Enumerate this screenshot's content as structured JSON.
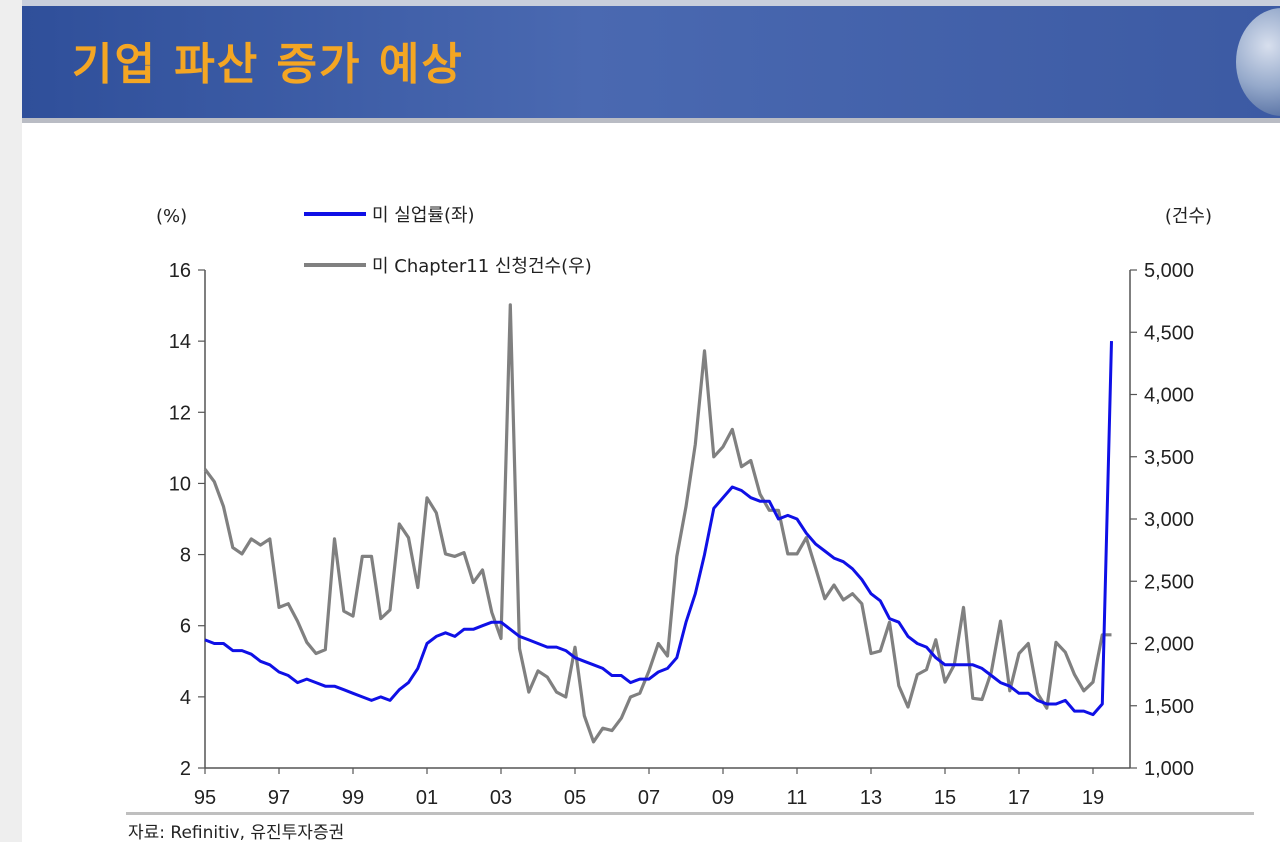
{
  "header": {
    "title": "기업 파산 증가 예상"
  },
  "source_note": "자료: Refinitiv, 유진투자증권",
  "chart_data": {
    "type": "line",
    "left_unit": "(%)",
    "right_unit": "(건수)",
    "x_labels": [
      "95",
      "97",
      "99",
      "01",
      "03",
      "05",
      "07",
      "09",
      "11",
      "13",
      "15",
      "17",
      "19"
    ],
    "x_range": [
      1995.0,
      2020.0
    ],
    "ylim_left": [
      2,
      16
    ],
    "yticks_left": [
      2,
      4,
      6,
      8,
      10,
      12,
      14,
      16
    ],
    "ylim_right": [
      1000,
      5000
    ],
    "yticks_right": [
      "1,000",
      "1,500",
      "2,000",
      "2,500",
      "3,000",
      "3,500",
      "4,000",
      "4,500",
      "5,000"
    ],
    "yticks_right_values": [
      1000,
      1500,
      2000,
      2500,
      3000,
      3500,
      4000,
      4500,
      5000
    ],
    "grid": false,
    "legend_position": "top",
    "series": [
      {
        "name": "미 실업률(좌)",
        "axis": "left",
        "color": "#0f10e6",
        "x": [
          1995.0,
          1995.25,
          1995.5,
          1995.75,
          1996.0,
          1996.25,
          1996.5,
          1996.75,
          1997.0,
          1997.25,
          1997.5,
          1997.75,
          1998.0,
          1998.25,
          1998.5,
          1998.75,
          1999.0,
          1999.25,
          1999.5,
          1999.75,
          2000.0,
          2000.25,
          2000.5,
          2000.75,
          2001.0,
          2001.25,
          2001.5,
          2001.75,
          2002.0,
          2002.25,
          2002.5,
          2002.75,
          2003.0,
          2003.25,
          2003.5,
          2003.75,
          2004.0,
          2004.25,
          2004.5,
          2004.75,
          2005.0,
          2005.25,
          2005.5,
          2005.75,
          2006.0,
          2006.25,
          2006.5,
          2006.75,
          2007.0,
          2007.25,
          2007.5,
          2007.75,
          2008.0,
          2008.25,
          2008.5,
          2008.75,
          2009.0,
          2009.25,
          2009.5,
          2009.75,
          2010.0,
          2010.25,
          2010.5,
          2010.75,
          2011.0,
          2011.25,
          2011.5,
          2011.75,
          2012.0,
          2012.25,
          2012.5,
          2012.75,
          2013.0,
          2013.25,
          2013.5,
          2013.75,
          2014.0,
          2014.25,
          2014.5,
          2014.75,
          2015.0,
          2015.25,
          2015.5,
          2015.75,
          2016.0,
          2016.25,
          2016.5,
          2016.75,
          2017.0,
          2017.25,
          2017.5,
          2017.75,
          2018.0,
          2018.25,
          2018.5,
          2018.75,
          2019.0,
          2019.25,
          2019.5
        ],
        "values": [
          5.6,
          5.5,
          5.5,
          5.3,
          5.3,
          5.2,
          5.0,
          4.9,
          4.7,
          4.6,
          4.4,
          4.5,
          4.4,
          4.3,
          4.3,
          4.2,
          4.1,
          4.0,
          3.9,
          4.0,
          3.9,
          4.2,
          4.4,
          4.8,
          5.5,
          5.7,
          5.8,
          5.7,
          5.9,
          5.9,
          6.0,
          6.1,
          6.1,
          5.9,
          5.7,
          5.6,
          5.5,
          5.4,
          5.4,
          5.3,
          5.1,
          5.0,
          4.9,
          4.8,
          4.6,
          4.6,
          4.4,
          4.5,
          4.5,
          4.7,
          4.8,
          5.1,
          6.1,
          6.9,
          8.0,
          9.3,
          9.6,
          9.9,
          9.8,
          9.6,
          9.5,
          9.5,
          9.0,
          9.1,
          9.0,
          8.6,
          8.3,
          8.1,
          7.9,
          7.8,
          7.6,
          7.3,
          6.9,
          6.7,
          6.2,
          6.1,
          5.7,
          5.5,
          5.4,
          5.1,
          4.9,
          4.9,
          4.9,
          4.9,
          4.8,
          4.6,
          4.4,
          4.3,
          4.1,
          4.1,
          3.9,
          3.8,
          3.8,
          3.9,
          3.6,
          3.6,
          3.5,
          3.8,
          14.0
        ]
      },
      {
        "name": "미 Chapter11 신청건수(우)",
        "axis": "right",
        "color": "#808080",
        "x": [
          1995.0,
          1995.25,
          1995.5,
          1995.75,
          1996.0,
          1996.25,
          1996.5,
          1996.75,
          1997.0,
          1997.25,
          1997.5,
          1997.75,
          1998.0,
          1998.25,
          1998.5,
          1998.75,
          1999.0,
          1999.25,
          1999.5,
          1999.75,
          2000.0,
          2000.25,
          2000.5,
          2000.75,
          2001.0,
          2001.25,
          2001.5,
          2001.75,
          2002.0,
          2002.25,
          2002.5,
          2002.75,
          2003.0,
          2003.25,
          2003.5,
          2003.75,
          2004.0,
          2004.25,
          2004.5,
          2004.75,
          2005.0,
          2005.25,
          2005.5,
          2005.75,
          2006.0,
          2006.25,
          2006.5,
          2006.75,
          2007.0,
          2007.25,
          2007.5,
          2007.75,
          2008.0,
          2008.25,
          2008.5,
          2008.75,
          2009.0,
          2009.25,
          2009.5,
          2009.75,
          2010.0,
          2010.25,
          2010.5,
          2010.75,
          2011.0,
          2011.25,
          2011.5,
          2011.75,
          2012.0,
          2012.25,
          2012.5,
          2012.75,
          2013.0,
          2013.25,
          2013.5,
          2013.75,
          2014.0,
          2014.25,
          2014.5,
          2014.75,
          2015.0,
          2015.25,
          2015.5,
          2015.75,
          2016.0,
          2016.25,
          2016.5,
          2016.75,
          2017.0,
          2017.25,
          2017.5,
          2017.75,
          2018.0,
          2018.25,
          2018.5,
          2018.75,
          2019.0,
          2019.25,
          2019.5
        ],
        "values": [
          3400,
          3300,
          3100,
          2770,
          2720,
          2840,
          2790,
          2840,
          2290,
          2320,
          2180,
          2010,
          1920,
          1950,
          2840,
          2260,
          2220,
          2700,
          2700,
          2200,
          2270,
          2960,
          2850,
          2450,
          3170,
          3050,
          2720,
          2700,
          2730,
          2490,
          2590,
          2250,
          2040,
          4720,
          1960,
          1610,
          1780,
          1730,
          1610,
          1570,
          1970,
          1420,
          1210,
          1320,
          1300,
          1400,
          1570,
          1600,
          1780,
          2000,
          1900,
          2700,
          3100,
          3600,
          4350,
          3500,
          3580,
          3720,
          3420,
          3470,
          3200,
          3070,
          3070,
          2720,
          2720,
          2850,
          2610,
          2360,
          2470,
          2350,
          2400,
          2320,
          1920,
          1940,
          2170,
          1660,
          1490,
          1750,
          1790,
          2030,
          1690,
          1830,
          2290,
          1560,
          1550,
          1770,
          2180,
          1620,
          1920,
          2000,
          1600,
          1480,
          2010,
          1930,
          1750,
          1620,
          1690,
          2070,
          2070
        ]
      }
    ]
  }
}
